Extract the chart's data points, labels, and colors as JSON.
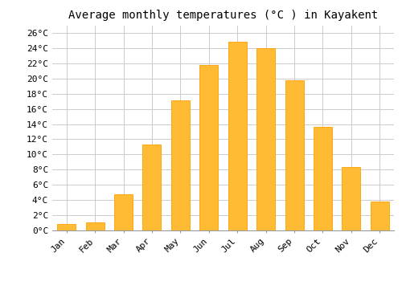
{
  "title": "Average monthly temperatures (°C ) in Kayakent",
  "months": [
    "Jan",
    "Feb",
    "Mar",
    "Apr",
    "May",
    "Jun",
    "Jul",
    "Aug",
    "Sep",
    "Oct",
    "Nov",
    "Dec"
  ],
  "temperatures": [
    0.8,
    1.1,
    4.8,
    11.3,
    17.1,
    21.8,
    24.8,
    24.0,
    19.8,
    13.6,
    8.3,
    3.8
  ],
  "bar_color": "#FFBB33",
  "bar_edge_color": "#FFA000",
  "background_color": "#FFFFFF",
  "grid_color": "#CCCCCC",
  "yticks": [
    0,
    2,
    4,
    6,
    8,
    10,
    12,
    14,
    16,
    18,
    20,
    22,
    24,
    26
  ],
  "ylim": [
    0,
    27
  ],
  "title_fontsize": 10,
  "tick_fontsize": 8,
  "font_family": "monospace"
}
